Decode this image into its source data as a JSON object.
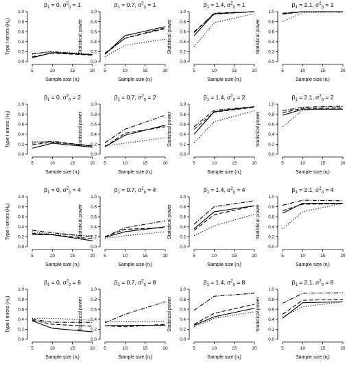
{
  "chart_data": {
    "type": "line",
    "x": [
      5,
      10,
      20
    ],
    "x_tick_labels": [
      "5",
      "10",
      "15",
      "20"
    ],
    "xlabel": "Sample size (n",
    "xlabel_sub": "i",
    "xlabel_close": ")",
    "ylabel_type1": "Type I errors (H",
    "ylabel_type1_sub": "0",
    "ylabel_type1_close": ")",
    "ylabel_power": "Statistical power",
    "ylim": [
      0,
      1
    ],
    "y_tick_labels": [
      "0.0",
      "0.2",
      "0.4",
      "0.6",
      "0.8",
      "1.0"
    ],
    "line_styles": [
      "solid",
      "dashed",
      "dotdash",
      "dotted"
    ],
    "panels": [
      {
        "row": 0,
        "col": 0,
        "beta": "0",
        "sigma": "1",
        "series": [
          [
            0.08,
            0.18,
            0.14
          ],
          [
            0.1,
            0.17,
            0.13
          ],
          [
            0.16,
            0.2,
            0.14
          ],
          [
            0.15,
            0.2,
            0.15
          ]
        ]
      },
      {
        "row": 0,
        "col": 1,
        "beta": "0.7",
        "sigma": "1",
        "series": [
          [
            0.15,
            0.52,
            0.7
          ],
          [
            0.17,
            0.47,
            0.66
          ],
          [
            0.15,
            0.47,
            0.68
          ],
          [
            0.1,
            0.33,
            0.45
          ]
        ]
      },
      {
        "row": 0,
        "col": 2,
        "beta": "1.4",
        "sigma": "1",
        "series": [
          [
            0.52,
            0.96,
            1.0
          ],
          [
            0.6,
            0.95,
            1.0
          ],
          [
            0.58,
            0.97,
            1.0
          ],
          [
            0.3,
            0.78,
            0.96
          ]
        ]
      },
      {
        "row": 0,
        "col": 3,
        "beta": "2.1",
        "sigma": "1",
        "series": [
          [
            0.96,
            1.0,
            1.0
          ],
          [
            0.95,
            1.0,
            1.0
          ],
          [
            0.97,
            1.0,
            0.99
          ],
          [
            0.8,
            0.98,
            1.0
          ]
        ]
      },
      {
        "row": 1,
        "col": 0,
        "beta": "0",
        "sigma": "2",
        "series": [
          [
            0.12,
            0.22,
            0.14
          ],
          [
            0.19,
            0.24,
            0.17
          ],
          [
            0.22,
            0.26,
            0.16
          ],
          [
            0.25,
            0.25,
            0.15
          ]
        ]
      },
      {
        "row": 1,
        "col": 1,
        "beta": "0.7",
        "sigma": "2",
        "series": [
          [
            0.15,
            0.38,
            0.58
          ],
          [
            0.15,
            0.42,
            0.55
          ],
          [
            0.23,
            0.5,
            0.78
          ],
          [
            0.17,
            0.22,
            0.33
          ]
        ]
      },
      {
        "row": 1,
        "col": 2,
        "beta": "1.4",
        "sigma": "2",
        "series": [
          [
            0.4,
            0.85,
            0.95
          ],
          [
            0.5,
            0.84,
            0.94
          ],
          [
            0.55,
            0.88,
            0.95
          ],
          [
            0.23,
            0.65,
            0.87
          ]
        ]
      },
      {
        "row": 1,
        "col": 3,
        "beta": "2.1",
        "sigma": "2",
        "series": [
          [
            0.78,
            0.9,
            0.9
          ],
          [
            0.83,
            0.92,
            0.92
          ],
          [
            0.87,
            0.94,
            0.96
          ],
          [
            0.55,
            0.88,
            0.95
          ]
        ]
      },
      {
        "row": 2,
        "col": 0,
        "beta": "0",
        "sigma": "4",
        "series": [
          [
            0.24,
            0.24,
            0.12
          ],
          [
            0.27,
            0.24,
            0.16
          ],
          [
            0.33,
            0.28,
            0.2
          ],
          [
            0.3,
            0.25,
            0.22
          ]
        ]
      },
      {
        "row": 2,
        "col": 1,
        "beta": "0.7",
        "sigma": "4",
        "series": [
          [
            0.19,
            0.3,
            0.4
          ],
          [
            0.2,
            0.35,
            0.38
          ],
          [
            0.2,
            0.38,
            0.52
          ],
          [
            0.17,
            0.22,
            0.3
          ]
        ]
      },
      {
        "row": 2,
        "col": 2,
        "beta": "1.4",
        "sigma": "4",
        "series": [
          [
            0.36,
            0.7,
            0.82
          ],
          [
            0.33,
            0.64,
            0.82
          ],
          [
            0.45,
            0.8,
            0.92
          ],
          [
            0.22,
            0.42,
            0.65
          ]
        ]
      },
      {
        "row": 2,
        "col": 3,
        "beta": "2.1",
        "sigma": "4",
        "series": [
          [
            0.67,
            0.87,
            0.87
          ],
          [
            0.72,
            0.85,
            0.86
          ],
          [
            0.83,
            0.93,
            0.92
          ],
          [
            0.36,
            0.7,
            0.87
          ]
        ]
      },
      {
        "row": 3,
        "col": 0,
        "beta": "0",
        "sigma": "8",
        "series": [
          [
            0.37,
            0.22,
            0.15
          ],
          [
            0.38,
            0.3,
            0.26
          ],
          [
            0.4,
            0.34,
            0.34
          ],
          [
            0.42,
            0.42,
            0.38
          ]
        ]
      },
      {
        "row": 3,
        "col": 1,
        "beta": "0.7",
        "sigma": "8",
        "series": [
          [
            0.27,
            0.28,
            0.28
          ],
          [
            0.27,
            0.25,
            0.3
          ],
          [
            0.33,
            0.5,
            0.75
          ],
          [
            0.35,
            0.35,
            0.35
          ]
        ]
      },
      {
        "row": 3,
        "col": 2,
        "beta": "1.4",
        "sigma": "8",
        "series": [
          [
            0.28,
            0.45,
            0.62
          ],
          [
            0.3,
            0.52,
            0.7
          ],
          [
            0.58,
            0.86,
            0.92
          ],
          [
            0.25,
            0.42,
            0.55
          ]
        ]
      },
      {
        "row": 3,
        "col": 3,
        "beta": "2.1",
        "sigma": "8",
        "series": [
          [
            0.42,
            0.73,
            0.75
          ],
          [
            0.5,
            0.78,
            0.8
          ],
          [
            0.72,
            0.92,
            0.93
          ],
          [
            0.45,
            0.65,
            0.75
          ]
        ]
      }
    ]
  }
}
